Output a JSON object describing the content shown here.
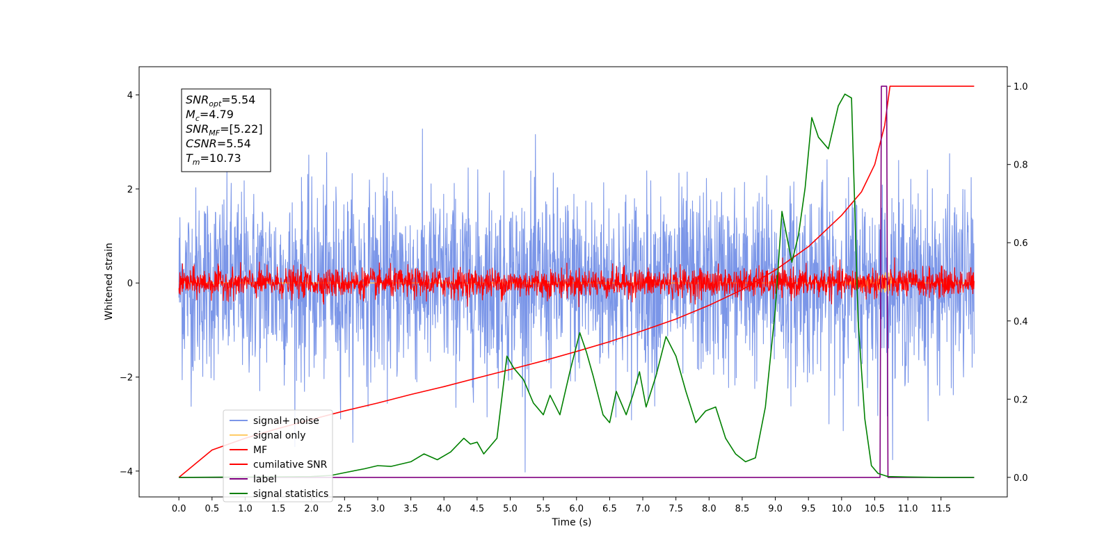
{
  "chart_data": {
    "type": "line",
    "xlabel": "Time (s)",
    "ylabel": "Whitened strain",
    "xlim": [
      -0.6,
      12.5
    ],
    "ylim": [
      -4.55,
      4.6
    ],
    "y2lim": [
      -0.05,
      1.05
    ],
    "xticks": [
      0.0,
      0.5,
      1.0,
      1.5,
      2.0,
      2.5,
      3.0,
      3.5,
      4.0,
      4.5,
      5.0,
      5.5,
      6.0,
      6.5,
      7.0,
      7.5,
      8.0,
      8.5,
      9.0,
      9.5,
      10.0,
      10.5,
      11.0,
      11.5
    ],
    "xtick_labels": [
      "0.0",
      "0.5",
      "1.0",
      "1.5",
      "2.0",
      "2.5",
      "3.0",
      "3.5",
      "4.0",
      "4.5",
      "5.0",
      "5.5",
      "6.0",
      "6.5",
      "7.0",
      "7.5",
      "8.0",
      "8.5",
      "9.0",
      "9.5",
      "10.0",
      "10.5",
      "11.0",
      "11.5"
    ],
    "yticks": [
      -4,
      -2,
      0,
      2,
      4
    ],
    "ytick_labels": [
      "−4",
      "−2",
      "0",
      "2",
      "4"
    ],
    "y2ticks": [
      0.0,
      0.2,
      0.4,
      0.6,
      0.8,
      1.0
    ],
    "y2tick_labels": [
      "0.0",
      "0.2",
      "0.4",
      "0.6",
      "0.8",
      "1.0"
    ],
    "grid": false,
    "legend_position": "lower-left",
    "info_box": {
      "lines": [
        {
          "main": "SNR",
          "sub": "opt",
          "rest": "=5.54"
        },
        {
          "main": "M",
          "sub": "c",
          "rest": "=4.79"
        },
        {
          "main": "SNR",
          "sub": "MF",
          "rest": "=[5.22]"
        },
        {
          "main": "CSNR",
          "sub": "",
          "rest": "=5.54"
        },
        {
          "main": "T",
          "sub": "m",
          "rest": "=10.73"
        }
      ]
    },
    "series": [
      {
        "name": "signal+ noise",
        "color": "#7b96e8",
        "axis": "left",
        "kind": "noise-band",
        "x_range": [
          0.0,
          12.0
        ],
        "amplitude_rms": 1.0
      },
      {
        "name": "signal only",
        "color": "#ffcc66",
        "axis": "left",
        "kind": "chirp",
        "x_range": [
          0.0,
          12.0
        ],
        "peak_amplitude": 0.25
      },
      {
        "name": "MF",
        "color": "#ff0000",
        "axis": "left",
        "kind": "noise-band",
        "x_range": [
          0.0,
          12.0
        ],
        "amplitude_rms": 0.15
      },
      {
        "name": "cumilative SNR",
        "color": "#ff0000",
        "axis": "right",
        "x": [
          0.0,
          0.5,
          1.0,
          1.5,
          2.0,
          2.5,
          3.0,
          3.5,
          4.0,
          4.5,
          5.0,
          5.5,
          6.0,
          6.5,
          7.0,
          7.5,
          8.0,
          8.5,
          9.0,
          9.5,
          10.0,
          10.3,
          10.5,
          10.65,
          10.73,
          12.0
        ],
        "y": [
          0.0,
          0.07,
          0.1,
          0.125,
          0.148,
          0.17,
          0.19,
          0.212,
          0.232,
          0.254,
          0.276,
          0.298,
          0.322,
          0.347,
          0.375,
          0.405,
          0.44,
          0.48,
          0.53,
          0.59,
          0.67,
          0.73,
          0.8,
          0.9,
          1.0,
          1.0
        ]
      },
      {
        "name": "label",
        "color": "#800080",
        "axis": "right",
        "x": [
          0.0,
          10.58,
          10.6,
          10.68,
          10.7,
          10.74,
          12.0
        ],
        "y": [
          0.0,
          0.0,
          1.0,
          1.0,
          0.0,
          0.0,
          0.0
        ]
      },
      {
        "name": "signal statistics",
        "color": "#008000",
        "axis": "right",
        "x": [
          0.0,
          1.0,
          2.0,
          2.3,
          2.5,
          2.8,
          3.0,
          3.2,
          3.5,
          3.7,
          3.9,
          4.1,
          4.3,
          4.4,
          4.5,
          4.6,
          4.8,
          4.95,
          5.05,
          5.2,
          5.35,
          5.5,
          5.6,
          5.75,
          5.9,
          6.05,
          6.15,
          6.25,
          6.4,
          6.5,
          6.6,
          6.75,
          6.85,
          6.95,
          7.05,
          7.2,
          7.35,
          7.5,
          7.65,
          7.8,
          7.95,
          8.1,
          8.25,
          8.4,
          8.55,
          8.7,
          8.85,
          9.0,
          9.1,
          9.25,
          9.35,
          9.45,
          9.55,
          9.65,
          9.8,
          9.95,
          10.05,
          10.15,
          10.25,
          10.35,
          10.45,
          10.55,
          10.7,
          11.0,
          11.5,
          12.0
        ],
        "y": [
          0.0,
          0.001,
          0.002,
          0.005,
          0.012,
          0.022,
          0.03,
          0.028,
          0.04,
          0.06,
          0.045,
          0.065,
          0.1,
          0.085,
          0.09,
          0.06,
          0.1,
          0.31,
          0.28,
          0.25,
          0.19,
          0.16,
          0.21,
          0.16,
          0.27,
          0.37,
          0.32,
          0.26,
          0.16,
          0.14,
          0.22,
          0.16,
          0.21,
          0.27,
          0.18,
          0.26,
          0.36,
          0.31,
          0.22,
          0.14,
          0.17,
          0.18,
          0.1,
          0.06,
          0.04,
          0.05,
          0.18,
          0.43,
          0.68,
          0.55,
          0.62,
          0.74,
          0.92,
          0.87,
          0.84,
          0.95,
          0.98,
          0.97,
          0.4,
          0.15,
          0.03,
          0.01,
          0.002,
          0.001,
          0.0,
          0.0
        ]
      }
    ]
  }
}
